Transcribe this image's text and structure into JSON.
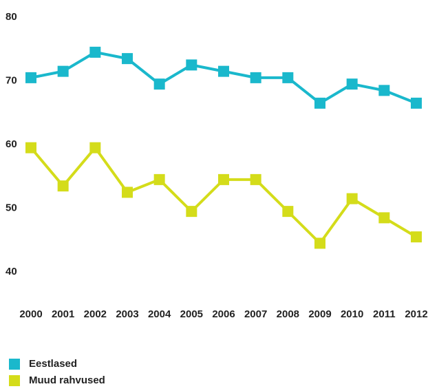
{
  "chart_data": {
    "type": "line",
    "categories": [
      "2000",
      "2001",
      "2002",
      "2003",
      "2004",
      "2005",
      "2006",
      "2007",
      "2008",
      "2009",
      "2010",
      "2011",
      "2012"
    ],
    "series": [
      {
        "name": "Eestlased",
        "color": "#1ab8cc",
        "values": [
          70.5,
          71.5,
          74.5,
          73.5,
          69.5,
          72.5,
          71.5,
          70.5,
          70.5,
          66.5,
          69.5,
          68.5,
          66.5
        ]
      },
      {
        "name": "Muud rahvused",
        "color": "#d4dc1a",
        "values": [
          59.5,
          53.5,
          59.5,
          52.5,
          54.5,
          49.5,
          54.5,
          54.5,
          49.5,
          44.5,
          51.5,
          48.5,
          45.5
        ]
      }
    ],
    "ylim": [
      40,
      80
    ],
    "yticks": [
      40,
      50,
      60,
      70,
      80
    ],
    "grid": false,
    "legend": "bottom-left"
  }
}
